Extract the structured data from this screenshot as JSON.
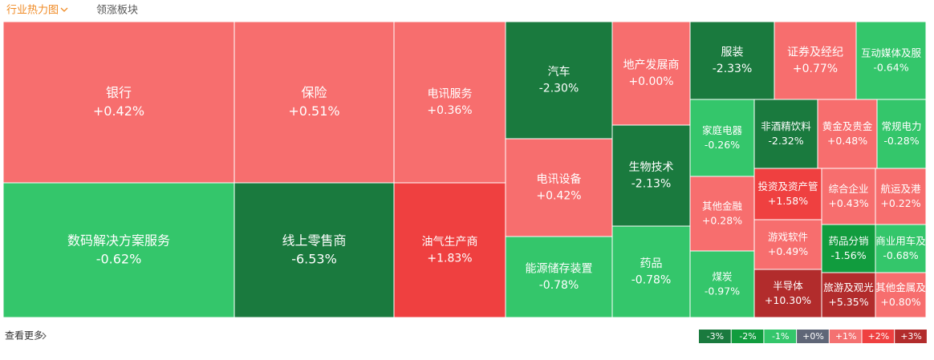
{
  "chart_data": {
    "type": "treemap",
    "tabs": [
      "行业热力图",
      "领涨板块"
    ],
    "more_link": "查看更多",
    "categories": [
      "银行",
      "保险",
      "电讯服务",
      "数码解决方案服务",
      "线上零售商",
      "油气生产商",
      "汽车",
      "电讯设备",
      "能源储存装置",
      "地产发展商",
      "生物技术",
      "药品",
      "服装",
      "证券及经纪",
      "互动媒体及服",
      "家庭电器",
      "非酒精饮料",
      "黄金及贵金",
      "常规电力",
      "其他金融",
      "投资及资产管",
      "综合企业",
      "航运及港",
      "游戏软件",
      "药品分销",
      "商业用车及",
      "煤炭",
      "半导体",
      "旅游及观光",
      "其他金属及"
    ],
    "values": [
      0.42,
      0.51,
      0.36,
      -0.62,
      -6.53,
      1.83,
      -2.3,
      0.42,
      -0.78,
      0,
      -2.13,
      -0.78,
      -2.33,
      0.77,
      -0.64,
      -0.26,
      -2.32,
      0.48,
      -0.28,
      0.28,
      1.58,
      0.43,
      0.22,
      0.49,
      -1.56,
      -0.68,
      -0.97,
      10.3,
      5.35,
      0.8
    ],
    "value_labels": [
      "+0.42%",
      "+0.51%",
      "+0.36%",
      "-0.62%",
      "-6.53%",
      "+1.83%",
      "-2.30%",
      "+0.42%",
      "-0.78%",
      "+0.00%",
      "-2.13%",
      "-0.78%",
      "-2.33%",
      "+0.77%",
      "-0.64%",
      "-0.26%",
      "-2.32%",
      "+0.48%",
      "-0.28%",
      "+0.28%",
      "+1.58%",
      "+0.43%",
      "+0.22%",
      "+0.49%",
      "-1.56%",
      "-0.68%",
      "-0.97%",
      "+10.30%",
      "+5.35%",
      "+0.80%"
    ],
    "colors": [
      "#f76e6e",
      "#f76e6e",
      "#f76e6e",
      "#34c66b",
      "#1a7a3e",
      "#ef4040",
      "#1a7a3e",
      "#f76e6e",
      "#34c66b",
      "#f76e6e",
      "#1a7a3e",
      "#34c66b",
      "#1a7a3e",
      "#f76e6e",
      "#34c66b",
      "#34c66b",
      "#1a7a3e",
      "#f76e6e",
      "#34c66b",
      "#f76e6e",
      "#ef4040",
      "#f76e6e",
      "#f76e6e",
      "#f76e6e",
      "#119c3e",
      "#34c66b",
      "#34c66b",
      "#b22c2c",
      "#b22c2c",
      "#f76e6e"
    ],
    "legend": {
      "labels": [
        "-3%",
        "-2%",
        "-1%",
        "+0%",
        "+1%",
        "+2%",
        "+3%"
      ],
      "colors": [
        "#1a7a3e",
        "#119c3e",
        "#34c66b",
        "#5f6677",
        "#f47171",
        "#ef4040",
        "#b22c2c"
      ]
    }
  }
}
